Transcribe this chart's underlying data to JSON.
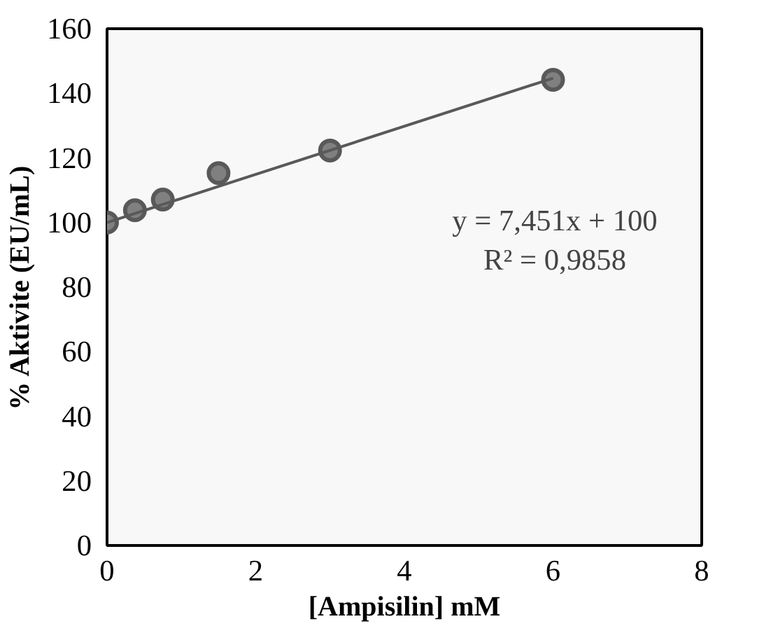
{
  "chart_data": {
    "type": "scatter",
    "xlabel": "[Ampisilin] mM",
    "ylabel": "% Aktivite (EU/mL)",
    "xlim": [
      0,
      8
    ],
    "xticks": [
      0,
      2,
      4,
      6,
      8
    ],
    "ylim": [
      0,
      160
    ],
    "yticks": [
      0,
      20,
      40,
      60,
      80,
      100,
      120,
      140,
      160
    ],
    "grid": false,
    "series": [
      {
        "marker": "circle",
        "color": "#808080",
        "x": [
          0,
          0.375,
          0.75,
          1.5,
          3,
          6
        ],
        "values": [
          100,
          103.8,
          107.1,
          115.3,
          122.3,
          144.2
        ]
      },
      {
        "type": "line",
        "color": "#595959",
        "x": [
          0,
          6
        ],
        "values": [
          100,
          144.7
        ],
        "line_style": "solid"
      }
    ],
    "annotations": [
      "y = 7,451x + 100\nR² = 0,9858"
    ]
  }
}
